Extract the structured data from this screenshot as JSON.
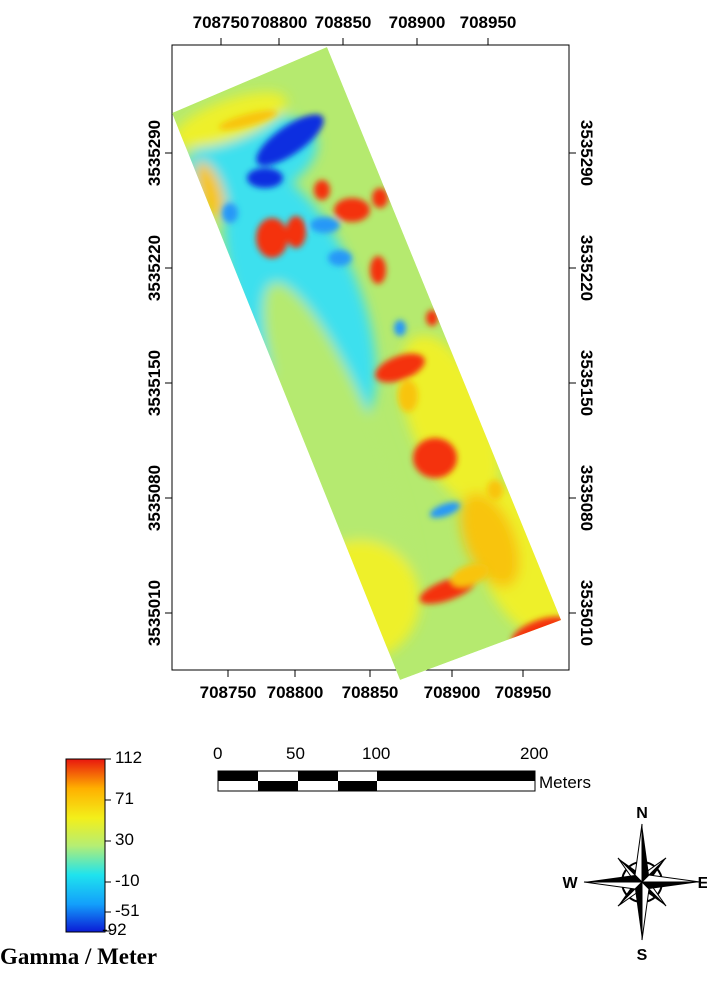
{
  "map": {
    "x_ticks": [
      "708750",
      "708800",
      "708850",
      "708900",
      "708950"
    ],
    "y_ticks": [
      "3535290",
      "3535220",
      "3535150",
      "3535080",
      "3535010"
    ]
  },
  "legend": {
    "title": "Gamma / Meter",
    "values": [
      "112",
      "71",
      "30",
      "-10",
      "-51",
      "-92"
    ],
    "colors": [
      "#e8170f",
      "#ffb000",
      "#f3ef1a",
      "#b6ee73",
      "#1fe3ee",
      "#139ffb",
      "#0b1bd6"
    ]
  },
  "scale_bar": {
    "labels": [
      "0",
      "50",
      "100",
      "200"
    ],
    "unit": "Meters"
  },
  "north_arrow": {
    "labels": {
      "n": "N",
      "s": "S",
      "e": "E",
      "w": "W"
    },
    "icon": "compass-rose-icon"
  },
  "survey_colors": {
    "background": "#b5ea6f",
    "positive": "#f43010",
    "high": "#f8c40c",
    "mid": "#eef02a",
    "negative": "#2598f7",
    "low": "#0a2fe0",
    "edge": "#3ee0ee"
  }
}
